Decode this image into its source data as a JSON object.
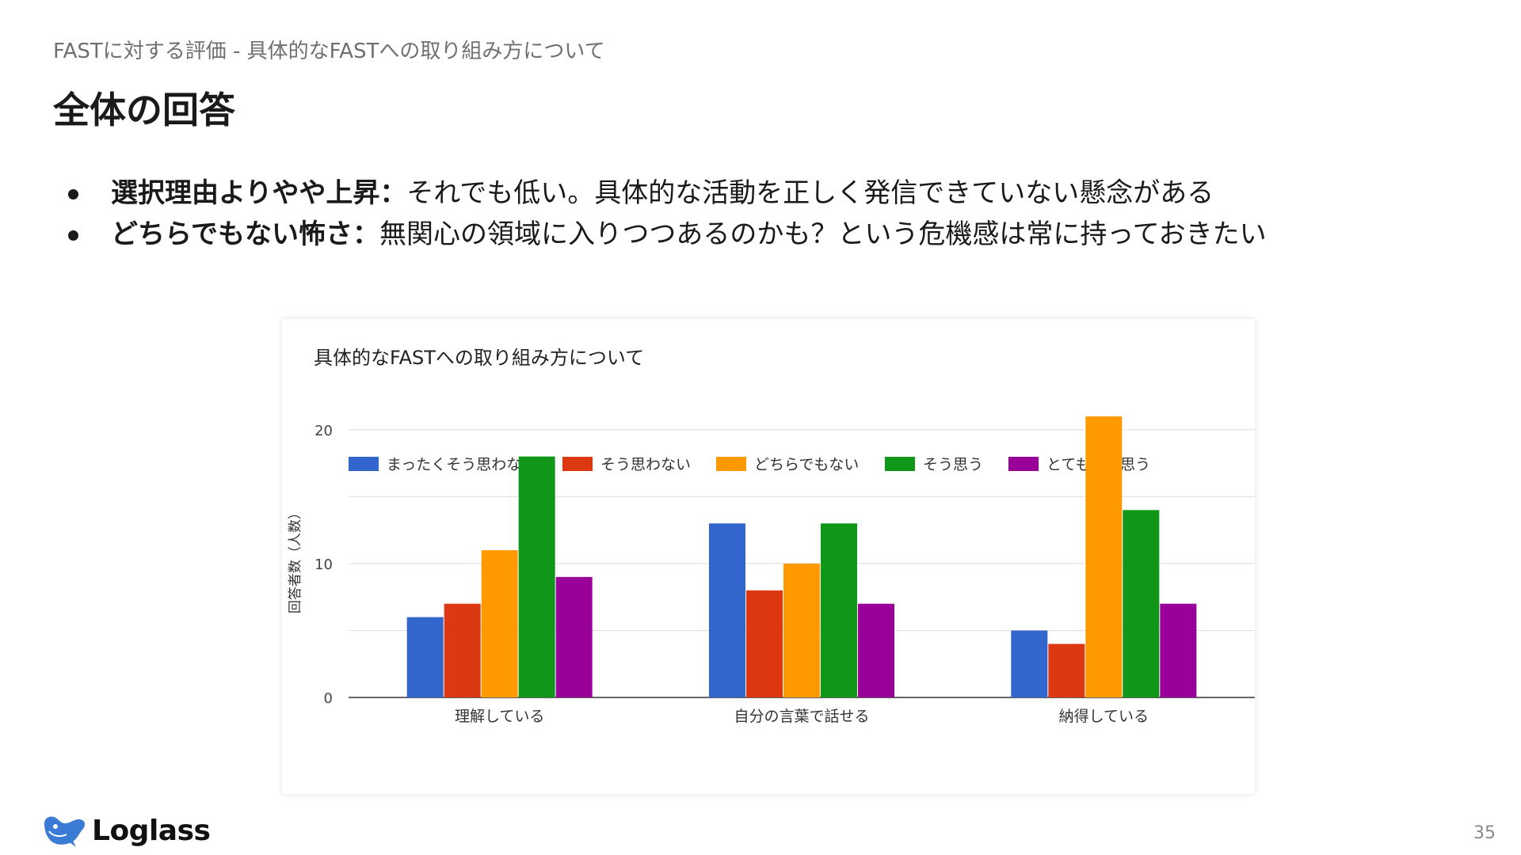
{
  "header": {
    "breadcrumb": "FASTに対する評価 - 具体的なFASTへの取り組み方について",
    "title": "全体の回答"
  },
  "bullets": [
    {
      "bold": "選択理由よりやや上昇：",
      "text": "それでも低い。具体的な活動を正しく発信できていない懸念がある"
    },
    {
      "bold": "どちらでもない怖さ：",
      "text": "無関心の領域に入りつつあるのかも？という危機感は常に持っておきたい"
    }
  ],
  "chart_data": {
    "type": "bar",
    "title": "具体的なFASTへの取り組み方について",
    "xlabel": "",
    "ylabel": "回答者数（人数）",
    "ylim": [
      0,
      22
    ],
    "yticks": [
      0,
      10,
      20
    ],
    "grid": true,
    "legend_position": "top",
    "categories": [
      "理解している",
      "自分の言葉で話せる",
      "納得している"
    ],
    "series": [
      {
        "name": "まったくそう思わない",
        "color": "#3366cc",
        "values": [
          6,
          13,
          5
        ]
      },
      {
        "name": "そう思わない",
        "color": "#dc3912",
        "values": [
          7,
          8,
          4
        ]
      },
      {
        "name": "どちらでもない",
        "color": "#ff9900",
        "values": [
          11,
          10,
          21
        ]
      },
      {
        "name": "そう思う",
        "color": "#109618",
        "values": [
          18,
          13,
          14
        ]
      },
      {
        "name": "とてもそう思う",
        "color": "#990099",
        "values": [
          9,
          7,
          7
        ]
      }
    ]
  },
  "footer": {
    "logo_text": "Loglass",
    "page_number": "35",
    "logo_color": "#3a7bd5"
  }
}
